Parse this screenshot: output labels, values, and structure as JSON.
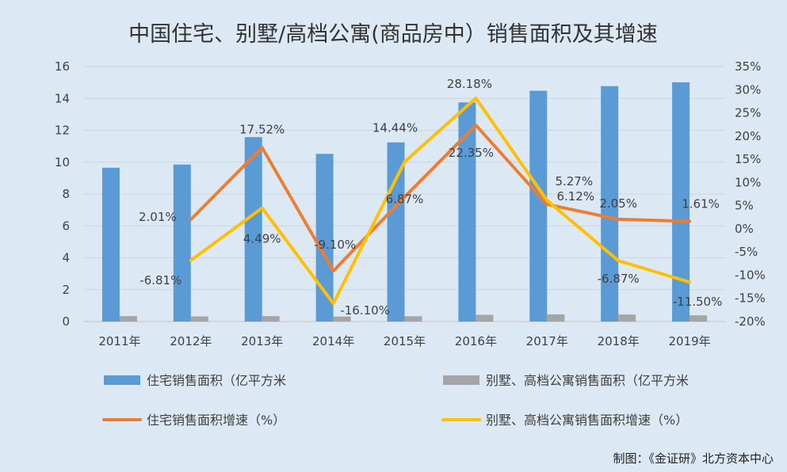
{
  "chart_data": {
    "type": "bar",
    "title": "中国住宅、别墅/高档公寓(商品房中）销售面积及其增速",
    "categories": [
      "2011年",
      "2012年",
      "2013年",
      "2014年",
      "2015年",
      "2016年",
      "2017年",
      "2018年",
      "2019年"
    ],
    "y_left": {
      "ylim": [
        0,
        16
      ],
      "ticks": [
        "0",
        "2",
        "4",
        "6",
        "8",
        "10",
        "12",
        "14",
        "16"
      ]
    },
    "y_right": {
      "ylim": [
        -20,
        35
      ],
      "ticks": [
        "-20%",
        "-15%",
        "-10%",
        "-5%",
        "0%",
        "5%",
        "10%",
        "15%",
        "20%",
        "25%",
        "30%",
        "35%"
      ]
    },
    "grid": true,
    "legend_position": "bottom",
    "series": [
      {
        "name": "住宅销售面积（亿平方米",
        "type": "bar",
        "axis": "left",
        "color": "#5b9bd5",
        "values": [
          9.65,
          9.85,
          11.57,
          10.52,
          11.24,
          13.75,
          14.48,
          14.77,
          15.01
        ]
      },
      {
        "name": "别墅、高档公寓销售面积（亿平方米",
        "type": "bar",
        "axis": "left",
        "color": "#a5a5a5",
        "values": [
          0.34,
          0.32,
          0.34,
          0.31,
          0.33,
          0.42,
          0.45,
          0.44,
          0.39
        ]
      },
      {
        "name": "住宅销售面积增速（%）",
        "type": "line",
        "axis": "right",
        "color": "#ed7d31",
        "values": [
          null,
          2.01,
          17.52,
          -9.1,
          6.87,
          22.35,
          5.27,
          2.05,
          1.61
        ],
        "labels": [
          "",
          "2.01%",
          "17.52%",
          "-9.10%",
          "6.87%",
          "22.35%",
          "5.27%",
          "2.05%",
          "1.61%"
        ]
      },
      {
        "name": "别墅、高档公寓销售面积增速（%）",
        "type": "line",
        "axis": "right",
        "color": "#ffc000",
        "values": [
          null,
          -6.81,
          4.49,
          -16.1,
          14.44,
          28.18,
          6.12,
          -6.87,
          -11.5
        ],
        "labels": [
          "",
          "-6.81%",
          "4.49%",
          "-16.10%",
          "14.44%",
          "28.18%",
          "6.12%",
          "-6.87%",
          "-11.50%"
        ]
      }
    ]
  },
  "credit": "制图：《金证研》北方资本中心"
}
